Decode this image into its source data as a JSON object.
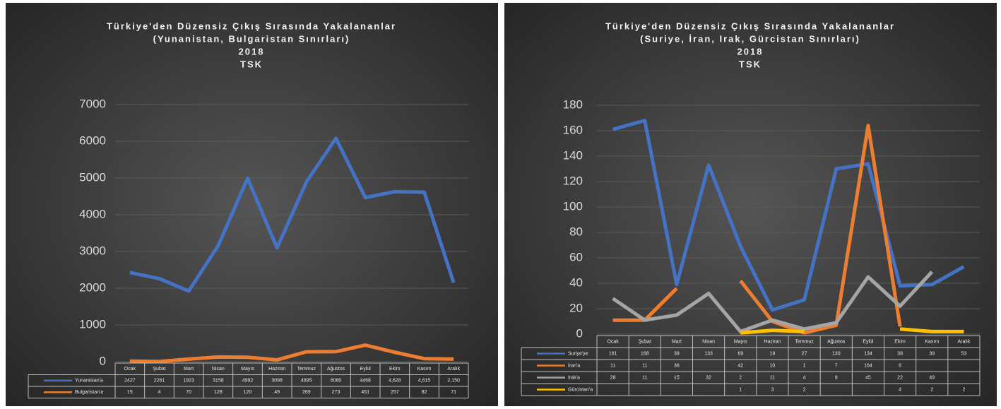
{
  "chart_data": [
    {
      "type": "line",
      "title": [
        "Türkiye'den Düzensiz Çıkış Sırasında Yakalananlar",
        "(Yunanistan, Bulgaristan Sınırları)",
        "2018",
        "TSK"
      ],
      "categories": [
        "Ocak",
        "Şubat",
        "Mart",
        "Nisan",
        "Mayıs",
        "Haziran",
        "Temmuz",
        "Ağustos",
        "Eylül",
        "Ekim",
        "Kasım",
        "Aralık"
      ],
      "series": [
        {
          "name": "Yunanistan'a",
          "color": "#4472c4",
          "values": [
            2427,
            2261,
            1923,
            3158,
            4992,
            3098,
            4895,
            6080,
            4468,
            4628,
            4615,
            2150
          ],
          "value_labels": [
            "2427",
            "2261",
            "1923",
            "3158",
            "4992",
            "3098",
            "4895",
            "6080",
            "4468",
            "4,628",
            "4,615",
            "2,150"
          ]
        },
        {
          "name": "Bulgaristan'a",
          "color": "#ed7d31",
          "values": [
            15,
            4,
            70,
            128,
            120,
            49,
            269,
            273,
            451,
            257,
            82,
            71
          ]
        }
      ],
      "ylim": [
        0,
        7000
      ],
      "yticks": [
        0,
        1000,
        2000,
        3000,
        4000,
        5000,
        6000,
        7000
      ],
      "grid": true
    },
    {
      "type": "line",
      "title": [
        "Türkiye'den Düzensiz Çıkış Sırasında Yakalananlar",
        "(Suriye, İran, Irak, Gürcistan Sınırları)",
        "2018",
        "TSK"
      ],
      "categories": [
        "Ocak",
        "Şubat",
        "Mart",
        "Nisan",
        "Mayıs",
        "Haziran",
        "Temmuz",
        "Ağustos",
        "Eylül",
        "Ekim",
        "Kasım",
        "Aralık"
      ],
      "series": [
        {
          "name": "Suriye'ye",
          "color": "#4472c4",
          "values": [
            161,
            168,
            39,
            133,
            69,
            19,
            27,
            130,
            134,
            38,
            39,
            53
          ]
        },
        {
          "name": "İran'a",
          "color": "#ed7d31",
          "values": [
            11,
            11,
            36,
            null,
            42,
            10,
            1,
            7,
            164,
            6,
            null,
            null
          ]
        },
        {
          "name": "Irak'a",
          "color": "#a5a5a5",
          "values": [
            28,
            11,
            15,
            32,
            2,
            11,
            4,
            9,
            45,
            22,
            49,
            null
          ]
        },
        {
          "name": "Gürcistan'a",
          "color": "#ffc000",
          "values": [
            null,
            null,
            null,
            null,
            1,
            3,
            2,
            null,
            null,
            4,
            2,
            2
          ]
        }
      ],
      "ylim": [
        0,
        180
      ],
      "yticks": [
        0,
        20,
        40,
        60,
        80,
        100,
        120,
        140,
        160,
        180
      ],
      "grid": true
    }
  ]
}
